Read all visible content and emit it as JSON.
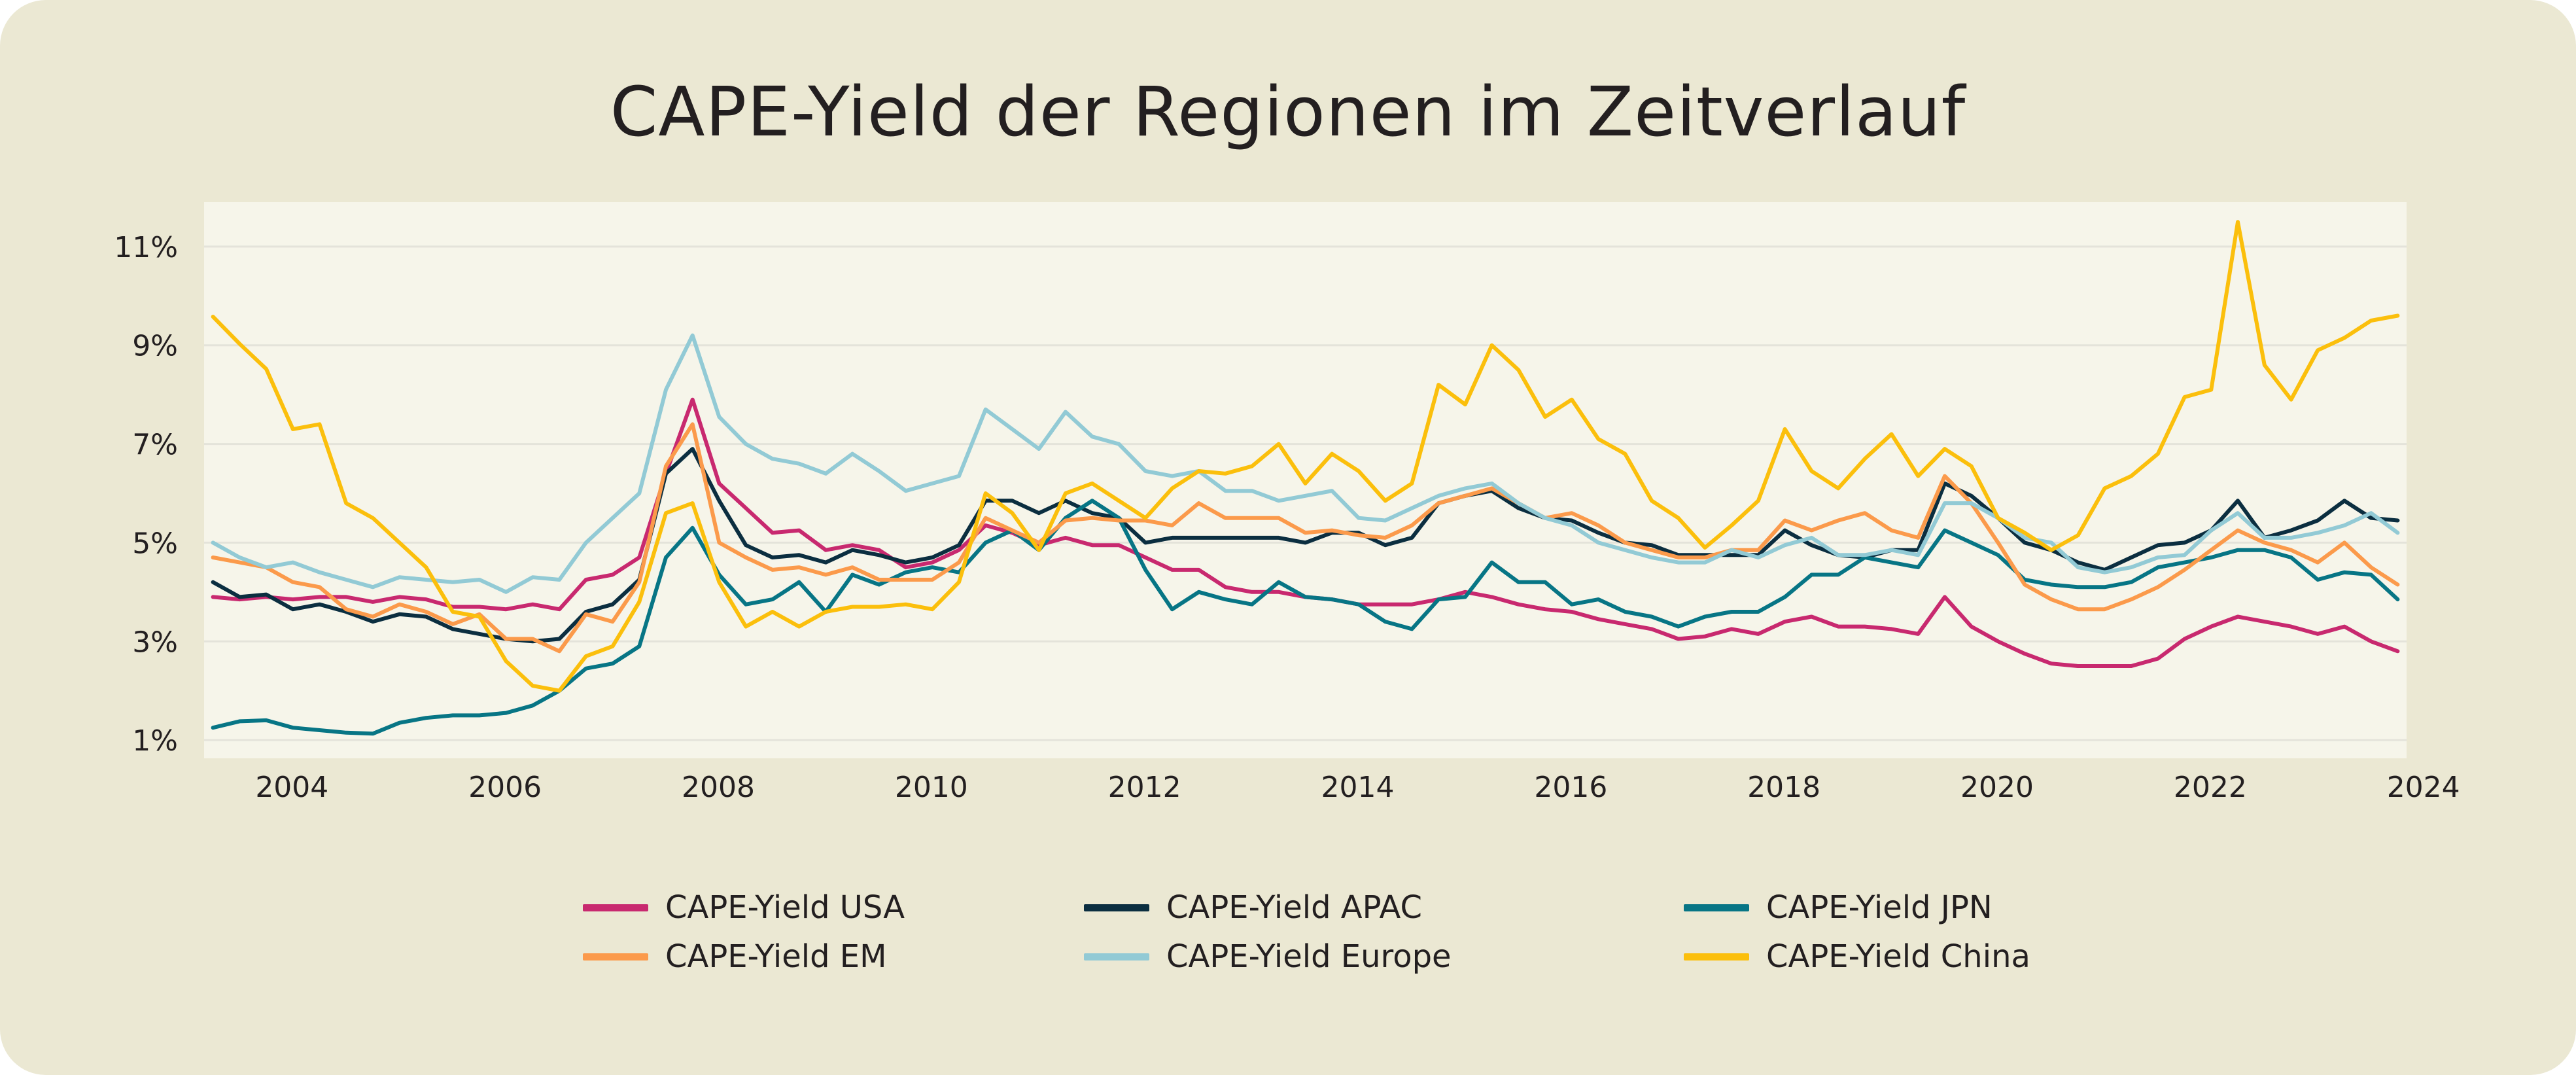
{
  "chart_data": {
    "type": "line",
    "title": "CAPE-Yield der Regionen im Zeitverlauf",
    "xlabel": "",
    "ylabel": "",
    "x_start": "2003-10",
    "x_step_months": 3,
    "xlim": [
      "2003-09",
      "2024-04"
    ],
    "ylim": [
      0.63,
      11.9
    ],
    "x_ticks": [
      "2004",
      "2006",
      "2008",
      "2010",
      "2012",
      "2014",
      "2016",
      "2018",
      "2020",
      "2022",
      "2024"
    ],
    "y_ticks": [
      1,
      3,
      5,
      7,
      9,
      11
    ],
    "y_tick_labels": [
      "1%",
      "3%",
      "5%",
      "7%",
      "9%",
      "11%"
    ],
    "grid": "horizontal",
    "legend_position": "bottom",
    "series": [
      {
        "name": "CAPE-Yield USA",
        "color": "#c8296f",
        "values": [
          3.9,
          3.85,
          3.9,
          3.85,
          3.9,
          3.9,
          3.8,
          3.9,
          3.85,
          3.7,
          3.7,
          3.65,
          3.75,
          3.65,
          4.25,
          4.35,
          4.7,
          6.4,
          7.9,
          6.2,
          5.7,
          5.2,
          5.25,
          4.85,
          4.95,
          4.85,
          4.5,
          4.6,
          4.85,
          5.35,
          5.2,
          4.95,
          5.1,
          4.95,
          4.95,
          4.7,
          4.45,
          4.45,
          4.1,
          4.0,
          4.0,
          3.9,
          3.85,
          3.75,
          3.75,
          3.75,
          3.85,
          4.0,
          3.9,
          3.75,
          3.65,
          3.6,
          3.45,
          3.35,
          3.25,
          3.05,
          3.1,
          3.25,
          3.15,
          3.4,
          3.5,
          3.3,
          3.3,
          3.25,
          3.15,
          3.9,
          3.3,
          3.0,
          2.75,
          2.55,
          2.5,
          2.5,
          2.5,
          2.65,
          3.05,
          3.3,
          3.5,
          3.4,
          3.3,
          3.15,
          3.3,
          3.0,
          2.8
        ]
      },
      {
        "name": "CAPE-Yield APAC",
        "color": "#0b2e40",
        "values": [
          4.2,
          3.9,
          3.95,
          3.65,
          3.75,
          3.6,
          3.4,
          3.55,
          3.5,
          3.25,
          3.15,
          3.05,
          3.0,
          3.05,
          3.6,
          3.75,
          4.25,
          6.4,
          6.9,
          5.85,
          4.95,
          4.7,
          4.75,
          4.6,
          4.85,
          4.75,
          4.6,
          4.7,
          4.95,
          5.85,
          5.85,
          5.6,
          5.85,
          5.6,
          5.5,
          5.0,
          5.1,
          5.1,
          5.1,
          5.1,
          5.1,
          5.0,
          5.2,
          5.2,
          4.95,
          5.1,
          5.8,
          5.95,
          6.05,
          5.7,
          5.5,
          5.45,
          5.2,
          5.0,
          4.95,
          4.75,
          4.75,
          4.75,
          4.75,
          5.25,
          4.95,
          4.75,
          4.7,
          4.85,
          4.85,
          6.2,
          5.95,
          5.5,
          5.0,
          4.85,
          4.6,
          4.45,
          4.7,
          4.95,
          5.0,
          5.25,
          5.85,
          5.1,
          5.25,
          5.45,
          5.85,
          5.5,
          5.45
        ]
      },
      {
        "name": "CAPE-Yield JPN",
        "color": "#077585",
        "values": [
          1.25,
          1.38,
          1.4,
          1.25,
          1.2,
          1.15,
          1.13,
          1.35,
          1.45,
          1.5,
          1.5,
          1.55,
          1.7,
          2.0,
          2.45,
          2.55,
          2.9,
          4.7,
          5.3,
          4.35,
          3.75,
          3.85,
          4.2,
          3.6,
          4.35,
          4.15,
          4.4,
          4.5,
          4.4,
          5.0,
          5.25,
          4.85,
          5.5,
          5.85,
          5.5,
          4.45,
          3.65,
          4.0,
          3.85,
          3.75,
          4.2,
          3.9,
          3.85,
          3.75,
          3.4,
          3.25,
          3.85,
          3.9,
          4.6,
          4.2,
          4.2,
          3.75,
          3.85,
          3.6,
          3.5,
          3.3,
          3.5,
          3.6,
          3.6,
          3.9,
          4.35,
          4.35,
          4.7,
          4.6,
          4.5,
          5.25,
          5.0,
          4.75,
          4.25,
          4.15,
          4.1,
          4.1,
          4.2,
          4.5,
          4.6,
          4.7,
          4.85,
          4.85,
          4.7,
          4.25,
          4.4,
          4.35,
          3.85
        ]
      },
      {
        "name": "CAPE-Yield EM",
        "color": "#fb9a4b",
        "values": [
          4.7,
          4.6,
          4.5,
          4.2,
          4.1,
          3.65,
          3.5,
          3.75,
          3.6,
          3.35,
          3.55,
          3.05,
          3.05,
          2.8,
          3.55,
          3.4,
          4.2,
          6.55,
          7.4,
          5.0,
          4.7,
          4.45,
          4.5,
          4.35,
          4.5,
          4.25,
          4.25,
          4.25,
          4.6,
          5.5,
          5.25,
          5.0,
          5.45,
          5.5,
          5.45,
          5.45,
          5.35,
          5.8,
          5.5,
          5.5,
          5.5,
          5.2,
          5.25,
          5.15,
          5.1,
          5.35,
          5.8,
          5.95,
          6.1,
          5.8,
          5.5,
          5.6,
          5.35,
          5.0,
          4.85,
          4.7,
          4.7,
          4.85,
          4.85,
          5.45,
          5.25,
          5.45,
          5.6,
          5.25,
          5.1,
          6.35,
          5.8,
          5.0,
          4.15,
          3.85,
          3.65,
          3.65,
          3.85,
          4.1,
          4.45,
          4.85,
          5.25,
          5.0,
          4.85,
          4.6,
          5.0,
          4.5,
          4.15
        ]
      },
      {
        "name": "CAPE-Yield Europe",
        "color": "#92cad5",
        "values": [
          5.0,
          4.7,
          4.5,
          4.6,
          4.4,
          4.25,
          4.1,
          4.3,
          4.25,
          4.2,
          4.25,
          4.0,
          4.3,
          4.25,
          5.0,
          5.5,
          6.0,
          8.1,
          9.2,
          7.55,
          7.0,
          6.7,
          6.6,
          6.4,
          6.8,
          6.45,
          6.05,
          6.2,
          6.35,
          7.7,
          7.3,
          6.9,
          7.65,
          7.15,
          7.0,
          6.45,
          6.35,
          6.45,
          6.05,
          6.05,
          5.85,
          5.95,
          6.05,
          5.5,
          5.45,
          5.7,
          5.95,
          6.1,
          6.2,
          5.8,
          5.5,
          5.35,
          5.0,
          4.85,
          4.7,
          4.6,
          4.6,
          4.85,
          4.7,
          4.95,
          5.1,
          4.75,
          4.75,
          4.85,
          4.75,
          5.8,
          5.8,
          5.5,
          5.1,
          5.0,
          4.5,
          4.4,
          4.5,
          4.7,
          4.75,
          5.25,
          5.6,
          5.1,
          5.1,
          5.2,
          5.35,
          5.6,
          5.2
        ]
      },
      {
        "name": "CAPE-Yield China",
        "color": "#fbbf0c",
        "values": [
          9.58,
          9.03,
          8.52,
          7.3,
          7.4,
          5.8,
          5.5,
          5.0,
          4.5,
          3.6,
          3.5,
          2.6,
          2.1,
          2.0,
          2.7,
          2.9,
          3.8,
          5.6,
          5.8,
          4.2,
          3.3,
          3.6,
          3.3,
          3.6,
          3.7,
          3.7,
          3.75,
          3.65,
          4.2,
          6.0,
          5.6,
          4.85,
          6.0,
          6.2,
          5.85,
          5.5,
          6.1,
          6.45,
          6.4,
          6.55,
          7.0,
          6.2,
          6.8,
          6.45,
          5.85,
          6.2,
          8.2,
          7.8,
          9.0,
          8.5,
          7.55,
          7.9,
          7.1,
          6.8,
          5.85,
          5.5,
          4.9,
          5.35,
          5.85,
          7.3,
          6.45,
          6.1,
          6.7,
          7.2,
          6.35,
          6.9,
          6.55,
          5.5,
          5.2,
          4.85,
          5.15,
          6.1,
          6.35,
          6.8,
          7.95,
          8.1,
          11.5,
          8.6,
          7.9,
          8.9,
          9.15,
          9.5,
          9.6
        ]
      }
    ]
  },
  "colors": {
    "card_background": "#ebe8d3",
    "plot_background": "#f6f5ea",
    "gridline": "#e4e3da",
    "text": "#231f20"
  }
}
